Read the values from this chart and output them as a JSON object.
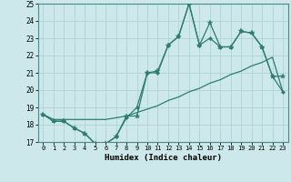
{
  "x": [
    0,
    1,
    2,
    3,
    4,
    5,
    6,
    7,
    8,
    9,
    10,
    11,
    12,
    13,
    14,
    15,
    16,
    17,
    18,
    19,
    20,
    21,
    22,
    23
  ],
  "ya": [
    18.6,
    18.2,
    18.2,
    17.8,
    17.5,
    16.9,
    16.9,
    17.3,
    18.5,
    18.5,
    21.0,
    21.1,
    22.6,
    23.1,
    25.0,
    22.6,
    23.9,
    22.5,
    22.5,
    23.4,
    23.3,
    22.5,
    20.8,
    20.8
  ],
  "yb": [
    18.6,
    18.2,
    18.2,
    17.8,
    17.5,
    16.9,
    16.9,
    17.3,
    18.4,
    19.0,
    21.0,
    21.0,
    22.6,
    23.1,
    25.0,
    22.6,
    23.0,
    22.5,
    22.5,
    23.4,
    23.3,
    22.5,
    20.8,
    19.9
  ],
  "yc": [
    18.6,
    18.3,
    18.3,
    18.3,
    18.3,
    18.3,
    18.3,
    18.4,
    18.5,
    18.7,
    18.9,
    19.1,
    19.4,
    19.6,
    19.9,
    20.1,
    20.4,
    20.6,
    20.9,
    21.1,
    21.4,
    21.6,
    21.9,
    19.9
  ],
  "color": "#2e7d6e",
  "bg_color": "#cce8ea",
  "grid_color": "#aacfd2",
  "xlabel": "Humidex (Indice chaleur)",
  "ylim": [
    17,
    25
  ],
  "xlim": [
    -0.5,
    23.5
  ],
  "yticks": [
    17,
    18,
    19,
    20,
    21,
    22,
    23,
    24,
    25
  ],
  "xticks": [
    0,
    1,
    2,
    3,
    4,
    5,
    6,
    7,
    8,
    9,
    10,
    11,
    12,
    13,
    14,
    15,
    16,
    17,
    18,
    19,
    20,
    21,
    22,
    23
  ]
}
